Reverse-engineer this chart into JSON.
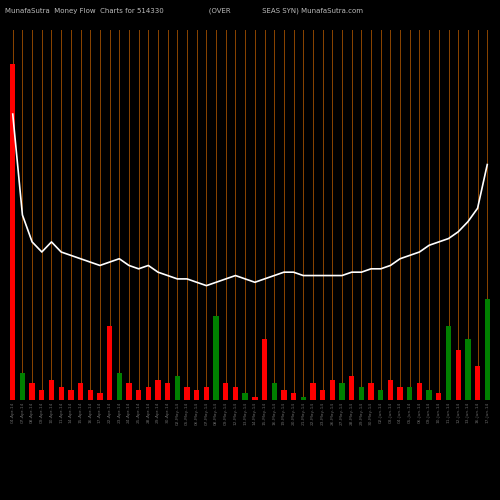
{
  "title": "MunafaSutra  Money Flow  Charts for 514330                    (OVER              SEAS SYN) MunafaSutra.com",
  "background_color": "#000000",
  "grid_color": "#8B4500",
  "line_color": "#ffffff",
  "bar_colors": [
    "red",
    "green",
    "red",
    "red",
    "red",
    "red",
    "red",
    "red",
    "red",
    "red",
    "red",
    "green",
    "red",
    "red",
    "red",
    "red",
    "red",
    "green",
    "red",
    "red",
    "red",
    "green",
    "red",
    "red",
    "green",
    "red",
    "red",
    "green",
    "red",
    "red",
    "green",
    "red",
    "red",
    "red",
    "green",
    "red",
    "green",
    "red",
    "green",
    "red",
    "red",
    "green",
    "red",
    "green",
    "red",
    "green",
    "red",
    "green",
    "red",
    "green"
  ],
  "bar_values": [
    100,
    8,
    5,
    3,
    6,
    4,
    3,
    5,
    3,
    2,
    22,
    8,
    5,
    3,
    4,
    6,
    5,
    7,
    4,
    3,
    4,
    25,
    5,
    4,
    2,
    1,
    18,
    5,
    3,
    2,
    1,
    5,
    3,
    6,
    5,
    7,
    4,
    5,
    3,
    6,
    4,
    4,
    5,
    3,
    2,
    22,
    15,
    18,
    10,
    30
  ],
  "line_values": [
    85,
    55,
    47,
    44,
    47,
    44,
    43,
    42,
    41,
    40,
    41,
    42,
    40,
    39,
    40,
    38,
    37,
    36,
    36,
    35,
    34,
    35,
    36,
    37,
    36,
    35,
    36,
    37,
    38,
    38,
    37,
    37,
    37,
    37,
    37,
    38,
    38,
    39,
    39,
    40,
    42,
    43,
    44,
    46,
    47,
    48,
    50,
    53,
    57,
    70
  ],
  "x_labels": [
    "04-Apr-14",
    "07-Apr-14",
    "08-Apr-14",
    "09-Apr-14",
    "10-Apr-14",
    "11-Apr-14",
    "14-Apr-14",
    "15-Apr-14",
    "16-Apr-14",
    "17-Apr-14",
    "22-Apr-14",
    "23-Apr-14",
    "24-Apr-14",
    "25-Apr-14",
    "28-Apr-14",
    "29-Apr-14",
    "30-Apr-14",
    "02-May-14",
    "05-May-14",
    "06-May-14",
    "07-May-14",
    "08-May-14",
    "09-May-14",
    "12-May-14",
    "13-May-14",
    "14-May-14",
    "15-May-14",
    "16-May-14",
    "19-May-14",
    "20-May-14",
    "21-May-14",
    "22-May-14",
    "23-May-14",
    "26-May-14",
    "27-May-14",
    "28-May-14",
    "29-May-14",
    "30-May-14",
    "02-Jun-14",
    "03-Jun-14",
    "04-Jun-14",
    "05-Jun-14",
    "06-Jun-14",
    "09-Jun-14",
    "10-Jun-14",
    "11-Jun-14",
    "12-Jun-14",
    "13-Jun-14",
    "16-Jun-14",
    "17-Jun-14"
  ],
  "n_bars": 50,
  "ylim": [
    0,
    110
  ],
  "figsize": [
    5.0,
    5.0
  ],
  "dpi": 100
}
